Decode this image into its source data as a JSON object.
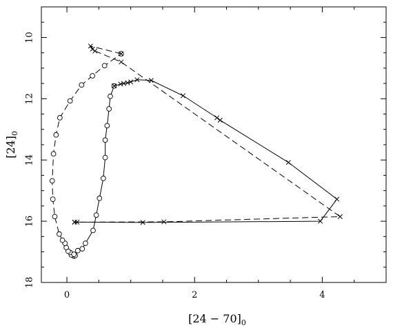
{
  "chart_data": {
    "type": "line",
    "title": "",
    "xlabel": {
      "main": "[24 − 70]",
      "sub": "0"
    },
    "ylabel": {
      "main": "[24]",
      "sub": "0"
    },
    "xlim": [
      -0.4,
      5.0
    ],
    "ylim": [
      18,
      9.0
    ],
    "y_inverted": true,
    "grid": false,
    "legend": "none",
    "xticks": [
      0,
      2,
      4
    ],
    "yticks": [
      10,
      12,
      14,
      16,
      18
    ],
    "series": [
      {
        "line": "dashed",
        "marker": "circle",
        "points": [
          [
            0.11,
            17.14
          ],
          [
            0.07,
            17.1
          ],
          [
            0.05,
            17.02
          ],
          [
            0.02,
            16.98
          ],
          [
            -0.01,
            16.86
          ],
          [
            -0.03,
            16.72
          ],
          [
            -0.07,
            16.62
          ],
          [
            -0.12,
            16.42
          ],
          [
            -0.19,
            15.85
          ],
          [
            -0.22,
            15.28
          ],
          [
            -0.23,
            14.68
          ],
          [
            -0.21,
            13.8
          ],
          [
            -0.17,
            13.18
          ],
          [
            -0.11,
            12.62
          ],
          [
            0.05,
            12.07
          ],
          [
            0.23,
            11.55
          ],
          [
            0.4,
            11.25
          ],
          [
            0.59,
            10.92
          ],
          [
            0.85,
            10.53
          ]
        ]
      },
      {
        "line": "dashed",
        "marker": "x",
        "points": [
          [
            0.85,
            10.53
          ],
          [
            0.37,
            10.28
          ],
          [
            0.4,
            10.38
          ],
          [
            0.44,
            10.44
          ],
          [
            0.85,
            10.8
          ],
          [
            4.28,
            15.85
          ],
          [
            1.52,
            16.02
          ],
          [
            0.12,
            16.03
          ]
        ]
      },
      {
        "line": "solid",
        "marker": "circle",
        "points": [
          [
            0.13,
            17.12
          ],
          [
            0.11,
            17.08
          ],
          [
            0.17,
            16.96
          ],
          [
            0.24,
            16.9
          ],
          [
            0.29,
            16.72
          ],
          [
            0.41,
            16.3
          ],
          [
            0.46,
            15.8
          ],
          [
            0.51,
            15.25
          ],
          [
            0.57,
            14.6
          ],
          [
            0.6,
            13.92
          ],
          [
            0.6,
            13.35
          ],
          [
            0.63,
            12.88
          ],
          [
            0.66,
            12.33
          ],
          [
            0.68,
            11.92
          ],
          [
            0.74,
            11.58
          ]
        ]
      },
      {
        "line": "solid",
        "marker": "x",
        "points": [
          [
            0.74,
            11.58
          ],
          [
            0.84,
            11.52
          ],
          [
            0.89,
            11.5
          ],
          [
            0.95,
            11.48
          ],
          [
            1.0,
            11.45
          ],
          [
            1.1,
            11.38
          ],
          [
            1.32,
            11.4
          ],
          [
            1.82,
            11.9
          ],
          [
            2.35,
            12.62
          ],
          [
            2.4,
            12.7
          ],
          [
            3.47,
            14.08
          ],
          [
            4.23,
            15.28
          ],
          [
            3.97,
            16.0
          ],
          [
            1.19,
            16.04
          ],
          [
            0.16,
            16.03
          ],
          [
            0.12,
            16.03
          ]
        ]
      }
    ]
  }
}
